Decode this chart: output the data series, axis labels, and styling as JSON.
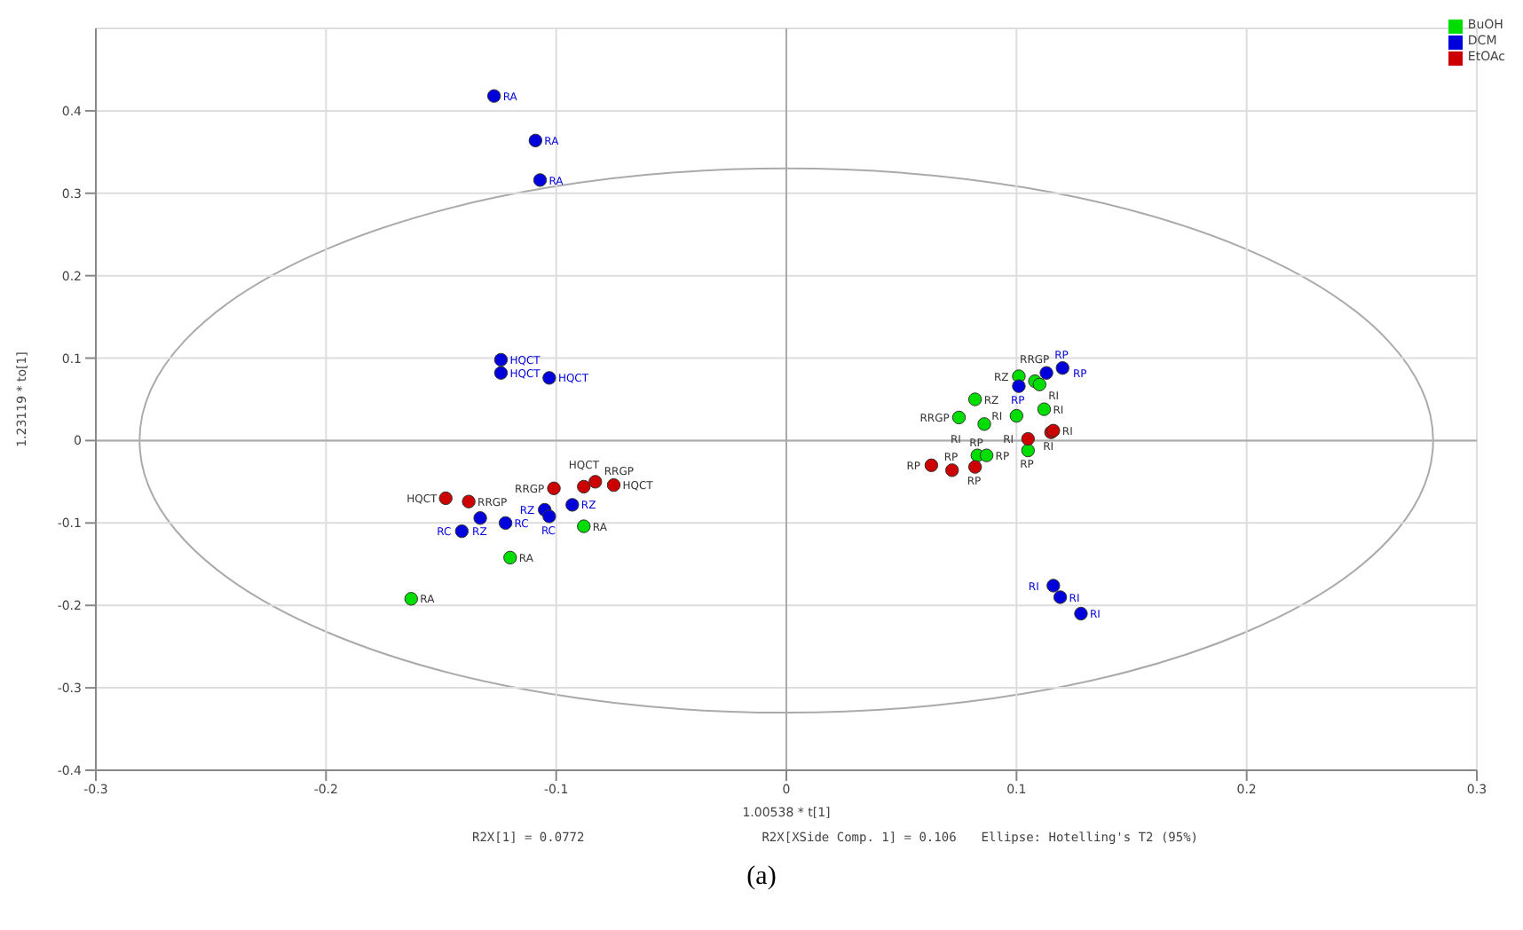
{
  "chart_data": {
    "type": "scatter",
    "xlabel": "1.00538 * t[1]",
    "ylabel": "1.23119 * to[1]",
    "xlim": [
      -0.3,
      0.3
    ],
    "xticks": [
      -0.3,
      -0.2,
      -0.1,
      0,
      0.1,
      0.2,
      0.3
    ],
    "ylim": [
      -0.4,
      0.5
    ],
    "yticks": [
      -0.4,
      -0.3,
      -0.2,
      -0.1,
      0,
      0.1,
      0.2,
      0.3,
      0.4
    ],
    "grid": true,
    "legend": "top right",
    "marker": "circle",
    "series": [
      {
        "name": "BuOH",
        "color": "#00dd00",
        "x": [
          -0.088,
          -0.12,
          -0.163,
          0.101,
          0.108,
          0.11,
          0.082,
          0.075,
          0.086,
          0.1,
          0.112,
          0.083,
          0.087,
          0.105
        ],
        "values": [
          -0.104,
          -0.142,
          -0.192,
          0.078,
          0.072,
          0.068,
          0.05,
          0.028,
          0.02,
          0.03,
          0.038,
          -0.018,
          -0.018,
          -0.012
        ],
        "value_labels": [
          "RA",
          "RA",
          "RA",
          "RZ",
          "RRGP",
          "RI",
          "RZ",
          "RRGP",
          "RI",
          "RI",
          "RI",
          "RP",
          "RP",
          "RP"
        ]
      },
      {
        "name": "DCM",
        "color": "#0000dd",
        "x": [
          -0.127,
          -0.109,
          -0.107,
          -0.124,
          -0.124,
          -0.103,
          -0.133,
          -0.141,
          -0.122,
          -0.105,
          -0.103,
          -0.093,
          0.113,
          0.12,
          0.101,
          0.116,
          0.119,
          0.128
        ],
        "values": [
          0.418,
          0.364,
          0.316,
          0.098,
          0.082,
          0.076,
          -0.094,
          -0.11,
          -0.1,
          -0.084,
          -0.092,
          -0.078,
          0.082,
          0.088,
          0.066,
          -0.176,
          -0.19,
          -0.21
        ],
        "value_labels": [
          "RA",
          "RA",
          "RA",
          "HQCT",
          "HQCT",
          "HQCT",
          "RZ",
          "RC",
          "RC",
          "RZ",
          "RC",
          "RZ",
          "RP",
          "RP",
          "RP",
          "RI",
          "RI",
          "RI"
        ]
      },
      {
        "name": "EtOAc",
        "color": "#cc0000",
        "x": [
          -0.148,
          -0.138,
          -0.101,
          -0.088,
          -0.083,
          -0.075,
          0.063,
          0.072,
          0.082,
          0.105,
          0.115,
          0.116
        ],
        "values": [
          -0.07,
          -0.074,
          -0.058,
          -0.056,
          -0.05,
          -0.054,
          -0.03,
          -0.036,
          -0.032,
          0.002,
          0.01,
          0.012
        ],
        "value_labels": [
          "HQCT",
          "RRGP",
          "RRGP",
          "HQCT",
          "RRGP",
          "HQCT",
          "RP",
          "RP",
          "RP",
          "RI",
          "RI",
          "RI"
        ]
      }
    ],
    "annotations": [
      "R2X[1] = 0.0772",
      "R2X[XSide Comp. 1] = 0.106",
      "Ellipse: Hotelling's T2 (95%)",
      "(a)"
    ]
  }
}
